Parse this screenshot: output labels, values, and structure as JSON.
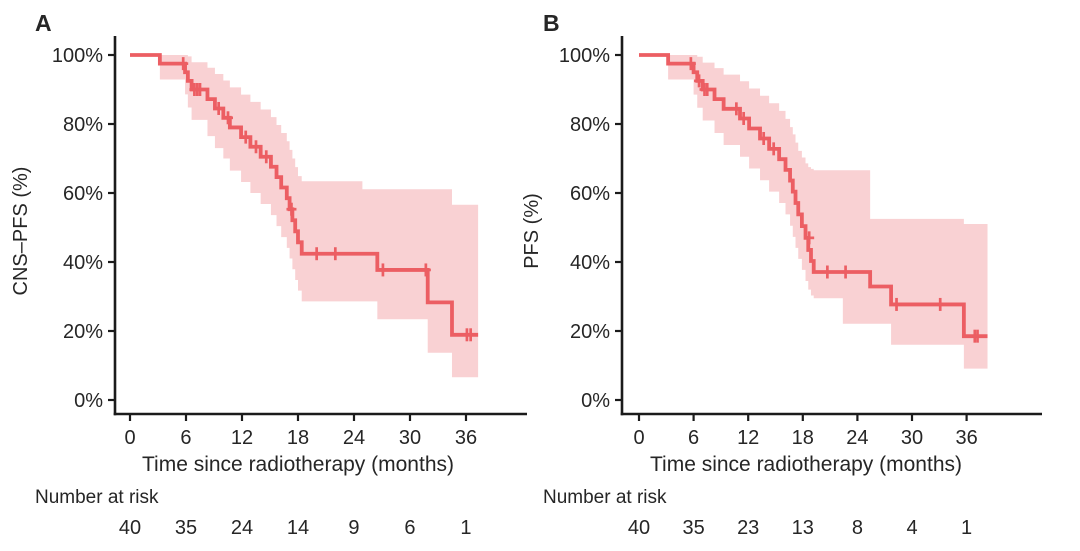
{
  "figure_type": "kaplan-meier-survival-figure",
  "colors": {
    "curve": "#ec5e63",
    "ci_band": "#f9d1d3",
    "axis": "#1b1b1b",
    "text": "#262626",
    "background": "#ffffff"
  },
  "chart_data": [
    {
      "type": "line",
      "variant": "kaplan-meier-step-curve-with-ci",
      "panel_label": "A",
      "xlabel": "Time since radiotherapy (months)",
      "ylabel": "CNS–PFS (%)",
      "x_ticks": [
        0,
        6,
        12,
        18,
        24,
        30,
        36
      ],
      "y_ticks": [
        "100%",
        "80%",
        "60%",
        "40%",
        "20%",
        "0%"
      ],
      "y_tick_values": [
        100,
        80,
        60,
        40,
        20,
        0
      ],
      "xlim": [
        0,
        42
      ],
      "ylim": [
        0,
        100
      ],
      "legend": "none",
      "grid": false,
      "curve_end_time": 37.3,
      "steps": [
        [
          0,
          100
        ],
        [
          3.2,
          97.5
        ],
        [
          5.9,
          95
        ],
        [
          6.2,
          92.5
        ],
        [
          6.6,
          90
        ],
        [
          8.3,
          87.2
        ],
        [
          9.1,
          84.5
        ],
        [
          10,
          81.8
        ],
        [
          10.7,
          79
        ],
        [
          11.9,
          76.2
        ],
        [
          12.9,
          73.4
        ],
        [
          14,
          70.5
        ],
        [
          15.1,
          67.6
        ],
        [
          15.7,
          64.6
        ],
        [
          16.2,
          61.6
        ],
        [
          16.8,
          58.5
        ],
        [
          17.1,
          55.3
        ],
        [
          17.4,
          52.1
        ],
        [
          17.7,
          48.9
        ],
        [
          18,
          45.7
        ],
        [
          18.4,
          42.4
        ],
        [
          26.5,
          37.7
        ],
        [
          31.9,
          28.3
        ],
        [
          34.5,
          18.9
        ]
      ],
      "censors": [
        [
          5.7,
          97.5
        ],
        [
          6.9,
          90
        ],
        [
          7.2,
          90
        ],
        [
          7.5,
          90
        ],
        [
          9.5,
          84.5
        ],
        [
          10.5,
          81.8
        ],
        [
          12.4,
          76.2
        ],
        [
          13.5,
          73.4
        ],
        [
          14.6,
          70.5
        ],
        [
          17.3,
          55.3
        ],
        [
          20,
          42.4
        ],
        [
          22,
          42.4
        ],
        [
          27.1,
          37.7
        ],
        [
          31.7,
          37.7
        ],
        [
          36.1,
          18.9
        ],
        [
          36.5,
          18.9
        ]
      ],
      "ci": [
        [
          3.2,
          92.9,
          100
        ],
        [
          5.9,
          88.6,
          100
        ],
        [
          6.2,
          84.8,
          99.6
        ],
        [
          6.6,
          81.2,
          97.9
        ],
        [
          8.3,
          76.5,
          96.3
        ],
        [
          9.1,
          73,
          94.5
        ],
        [
          10,
          70,
          92.6
        ],
        [
          10.7,
          66.5,
          90.6
        ],
        [
          11.9,
          63.2,
          88.5
        ],
        [
          12.9,
          60,
          86.4
        ],
        [
          14,
          56.8,
          84.2
        ],
        [
          15.1,
          53.6,
          82
        ],
        [
          15.7,
          50.4,
          79.7
        ],
        [
          16.2,
          47.2,
          77.4
        ],
        [
          16.8,
          44.1,
          75
        ],
        [
          17.1,
          41,
          72.5
        ],
        [
          17.4,
          37.9,
          70
        ],
        [
          17.7,
          34.8,
          67.5
        ],
        [
          18,
          31.7,
          64.9
        ],
        [
          18.4,
          28.6,
          63.4
        ],
        [
          24.9,
          28.6,
          61.1
        ],
        [
          26.5,
          23.4,
          61.1
        ],
        [
          31.9,
          13.7,
          61.1
        ],
        [
          34.5,
          6.6,
          56.6
        ]
      ],
      "risk_label": "Number at risk",
      "number_at_risk": {
        "times": [
          0,
          6,
          12,
          18,
          24,
          30,
          36
        ],
        "counts": [
          40,
          35,
          24,
          14,
          9,
          6,
          1
        ]
      }
    },
    {
      "type": "line",
      "variant": "kaplan-meier-step-curve-with-ci",
      "panel_label": "B",
      "xlabel": "Time since radiotherapy (months)",
      "ylabel": "PFS (%)",
      "x_ticks": [
        0,
        6,
        12,
        18,
        24,
        30,
        36
      ],
      "y_ticks": [
        "100%",
        "80%",
        "60%",
        "40%",
        "20%",
        "0%"
      ],
      "y_tick_values": [
        100,
        80,
        60,
        40,
        20,
        0
      ],
      "xlim": [
        0,
        42
      ],
      "ylim": [
        0,
        100
      ],
      "legend": "none",
      "grid": false,
      "curve_end_time": 38.3,
      "steps": [
        [
          0,
          100
        ],
        [
          3.2,
          97.5
        ],
        [
          6,
          95
        ],
        [
          6.4,
          92.5
        ],
        [
          7,
          90
        ],
        [
          8.3,
          87.2
        ],
        [
          9.3,
          84.4
        ],
        [
          11.1,
          81.6
        ],
        [
          12.1,
          78.7
        ],
        [
          13.3,
          75.8
        ],
        [
          14.3,
          72.8
        ],
        [
          15.4,
          69.8
        ],
        [
          16.1,
          66.7
        ],
        [
          16.6,
          63.6
        ],
        [
          16.9,
          60.4
        ],
        [
          17.2,
          57.1
        ],
        [
          17.5,
          53.8
        ],
        [
          17.9,
          50.4
        ],
        [
          18.3,
          47
        ],
        [
          18.6,
          43.5
        ],
        [
          18.9,
          40.3
        ],
        [
          19.2,
          37.1
        ],
        [
          25.4,
          32.9
        ],
        [
          27.7,
          27.7
        ],
        [
          35.7,
          18.5
        ]
      ],
      "censors": [
        [
          5.7,
          97.5
        ],
        [
          6.6,
          92.5
        ],
        [
          7.2,
          90
        ],
        [
          7.5,
          90
        ],
        [
          10.7,
          84.4
        ],
        [
          11.5,
          81.6
        ],
        [
          13.7,
          75.8
        ],
        [
          14.8,
          72.8
        ],
        [
          18.7,
          47
        ],
        [
          20.7,
          37.1
        ],
        [
          22.7,
          37.1
        ],
        [
          28.3,
          27.7
        ],
        [
          33.1,
          27.7
        ],
        [
          36.9,
          18.5
        ],
        [
          37.2,
          18.5
        ]
      ],
      "ci": [
        [
          3.2,
          92.9,
          100
        ],
        [
          6,
          88.5,
          100
        ],
        [
          6.4,
          84.7,
          99.5
        ],
        [
          7,
          81,
          97.8
        ],
        [
          8.3,
          77.4,
          96.2
        ],
        [
          9.3,
          73.9,
          94.3
        ],
        [
          11.1,
          70.5,
          92.4
        ],
        [
          12.1,
          67.1,
          90.3
        ],
        [
          13.3,
          63.7,
          88.2
        ],
        [
          14.3,
          60.4,
          86
        ],
        [
          15.4,
          57.1,
          83.8
        ],
        [
          16.1,
          53.8,
          81.5
        ],
        [
          16.6,
          50.5,
          79.1
        ],
        [
          16.9,
          47.3,
          77
        ],
        [
          17.2,
          44.1,
          74.6
        ],
        [
          17.5,
          40.9,
          72.2
        ],
        [
          17.9,
          37.7,
          70.3
        ],
        [
          18.3,
          34.5,
          68.6
        ],
        [
          18.6,
          32,
          67.5
        ],
        [
          18.9,
          30.3,
          67
        ],
        [
          19.2,
          29.5,
          66.6
        ],
        [
          22.4,
          22.1,
          66.6
        ],
        [
          25.4,
          22.1,
          52.5
        ],
        [
          27.7,
          16,
          52.5
        ],
        [
          35.7,
          9.1,
          51
        ]
      ],
      "risk_label": "Number at risk",
      "number_at_risk": {
        "times": [
          0,
          6,
          12,
          18,
          24,
          30,
          36
        ],
        "counts": [
          40,
          35,
          23,
          13,
          8,
          4,
          1
        ]
      }
    }
  ]
}
